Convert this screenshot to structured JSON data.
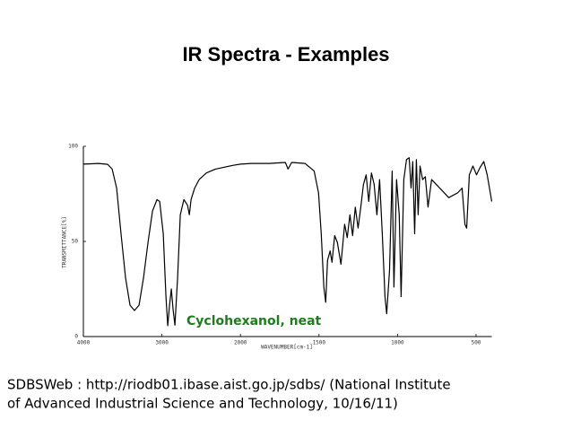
{
  "title": "IR Spectra - Examples",
  "chart_data": {
    "type": "line",
    "x_label": "WAVENUMBER[cm-1]",
    "y_label": "TRANSMITTANCE[%]",
    "annotation": "Cyclohexanol, neat",
    "annotation_color": "#1e7b1e",
    "x": [
      4000,
      3806,
      3691,
      3634,
      3577,
      3520,
      3463,
      3406,
      3349,
      3291,
      3234,
      3177,
      3120,
      3063,
      3029,
      2983,
      2949,
      2926,
      2903,
      2880,
      2857,
      2834,
      2800,
      2766,
      2720,
      2674,
      2651,
      2629,
      2583,
      2526,
      2434,
      2320,
      2206,
      2091,
      2000,
      1931,
      1817,
      1714,
      1697,
      1674,
      1589,
      1531,
      1503,
      1486,
      1469,
      1457,
      1446,
      1429,
      1417,
      1400,
      1383,
      1360,
      1337,
      1320,
      1303,
      1286,
      1269,
      1251,
      1234,
      1217,
      1200,
      1183,
      1166,
      1149,
      1131,
      1114,
      1097,
      1080,
      1069,
      1051,
      1034,
      1023,
      1006,
      989,
      977,
      960,
      943,
      926,
      914,
      903,
      891,
      880,
      869,
      857,
      840,
      823,
      806,
      783,
      731,
      674,
      617,
      589,
      571,
      560,
      543,
      520,
      497,
      474,
      451,
      429,
      400
    ],
    "series": [
      {
        "name": "Cyclohexanol",
        "color": "#000000",
        "values": [
          90.6,
          91,
          90.5,
          88,
          78,
          54,
          31,
          16.5,
          13.7,
          16.5,
          31,
          49.5,
          66,
          72,
          71,
          54,
          21,
          5.7,
          16.5,
          25,
          14,
          6,
          31,
          64,
          72,
          69,
          64,
          72,
          78,
          82.5,
          86,
          88,
          89,
          90,
          90.6,
          91,
          91,
          91.5,
          88,
          91.5,
          91,
          87,
          75.5,
          54,
          26,
          18,
          40,
          45,
          39,
          53,
          49.5,
          38,
          59,
          52,
          64,
          53,
          68,
          57,
          68,
          80,
          85,
          71,
          86,
          80,
          64,
          82.5,
          54,
          21,
          12,
          35,
          87,
          26,
          82.5,
          64,
          21,
          82.5,
          93,
          94,
          78,
          92,
          54,
          93,
          64,
          89.6,
          82.5,
          84,
          68,
          82.5,
          78,
          73,
          75.5,
          78,
          59,
          57,
          85,
          89.6,
          85,
          89,
          92,
          85,
          71
        ]
      }
    ],
    "xlim": [
      4000,
      400
    ],
    "xticks": [
      4000,
      3000,
      2000,
      1500,
      1000,
      500
    ],
    "ylim": [
      0,
      100
    ],
    "yticks": [
      0,
      50,
      100
    ]
  },
  "footer": [
    "SDBSWeb : http://riodb01.ibase.aist.go.jp/sdbs/ (National Institute",
    "of Advanced Industrial Science and Technology, 10/16/11)"
  ]
}
